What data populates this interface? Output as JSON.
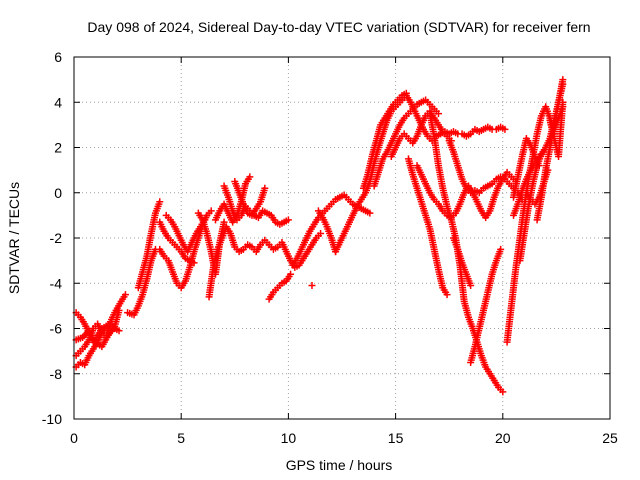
{
  "chart_data": {
    "type": "scatter",
    "title": "Day 098 of 2024, Sidereal Day-to-day VTEC variation (SDTVAR) for receiver fern",
    "xlabel": "GPS time / hours",
    "ylabel": "SDTVAR / TECUs",
    "xlim": [
      0,
      25
    ],
    "ylim": [
      -10,
      6
    ],
    "xticks": [
      "0",
      "5",
      "10",
      "15",
      "20",
      "25"
    ],
    "yticks": [
      "-10",
      "-8",
      "-6",
      "-4",
      "-2",
      "0",
      "2",
      "4",
      "6"
    ],
    "grid": true,
    "marker": "+",
    "colors": {
      "series": "#ff0000"
    },
    "series": [
      {
        "x": [
          0.1,
          0.3,
          0.5,
          0.7,
          0.9,
          1.1,
          1.3,
          1.5,
          1.7,
          1.9,
          2.1
        ],
        "y": [
          -7.7,
          -7.5,
          -7.6,
          -7.2,
          -6.9,
          -6.6,
          -6.2,
          -5.9,
          -5.8,
          -6.0,
          -6.1
        ]
      },
      {
        "x": [
          0.1,
          0.3,
          0.5,
          0.7,
          0.9,
          1.1,
          1.3,
          1.5,
          1.7,
          1.9,
          2.2,
          2.4
        ],
        "y": [
          -7.2,
          -7.0,
          -6.8,
          -6.5,
          -6.0,
          -5.8,
          -6.2,
          -6.4,
          -5.7,
          -5.3,
          -4.8,
          -4.5
        ]
      },
      {
        "x": [
          0.1,
          0.3,
          0.5,
          0.7,
          0.9,
          1.1,
          1.3,
          1.5
        ],
        "y": [
          -5.3,
          -5.5,
          -5.8,
          -6.2,
          -6.6,
          -6.3,
          -6.0,
          -5.9
        ]
      },
      {
        "x": [
          0.1,
          0.4,
          0.7,
          1.0,
          1.3,
          1.6,
          1.9,
          2.1
        ],
        "y": [
          -6.5,
          -6.4,
          -6.1,
          -6.6,
          -6.8,
          -6.3,
          -5.9,
          -5.2
        ]
      },
      {
        "x": [
          2.5,
          2.8,
          3.0,
          3.2,
          3.4,
          3.6,
          3.8,
          4.0,
          4.2,
          4.4,
          4.6,
          4.8,
          5.0,
          5.2,
          5.4,
          5.6,
          5.8,
          6.0,
          6.2,
          6.4
        ],
        "y": [
          -5.3,
          -5.4,
          -5.0,
          -4.5,
          -3.8,
          -3.0,
          -2.5,
          -2.5,
          -2.8,
          -3.0,
          -3.5,
          -4.0,
          -4.2,
          -3.9,
          -3.3,
          -2.6,
          -2.0,
          -1.4,
          -1.0,
          -0.8
        ]
      },
      {
        "x": [
          3.0,
          3.2,
          3.4,
          3.6,
          3.8,
          4.0
        ],
        "y": [
          -4.2,
          -3.5,
          -2.8,
          -1.8,
          -0.9,
          -0.4
        ]
      },
      {
        "x": [
          4.0,
          4.2,
          4.4,
          4.6,
          4.8,
          5.0,
          5.2,
          5.4,
          5.6
        ],
        "y": [
          -1.3,
          -1.7,
          -2.0,
          -2.2,
          -2.4,
          -2.6,
          -2.9,
          -3.0,
          -3.1
        ]
      },
      {
        "x": [
          4.3,
          4.5,
          4.7,
          4.9,
          5.1,
          5.3,
          5.5,
          5.7,
          5.9,
          6.1
        ],
        "y": [
          -1.0,
          -1.2,
          -1.5,
          -1.9,
          -2.3,
          -2.6,
          -2.2,
          -1.8,
          -1.5,
          -1.2
        ]
      },
      {
        "x": [
          5.8,
          6.0,
          6.2,
          6.4,
          6.6,
          6.8,
          7.0
        ],
        "y": [
          -0.9,
          -1.2,
          -1.8,
          -2.6,
          -3.6,
          -2.2,
          -1.3
        ]
      },
      {
        "x": [
          6.3,
          6.5,
          6.7,
          6.9,
          7.1,
          7.3,
          7.5,
          7.7,
          7.9,
          8.1,
          8.3,
          8.5,
          8.7,
          8.9,
          9.1,
          9.3,
          9.5,
          9.7,
          9.9,
          10.1,
          10.3,
          10.5,
          10.7,
          10.9,
          11.1,
          11.3,
          11.5
        ],
        "y": [
          -4.6,
          -3.3,
          -2.5,
          -2.0,
          -1.5,
          -1.8,
          -2.4,
          -2.6,
          -2.5,
          -2.3,
          -2.4,
          -2.6,
          -2.3,
          -2.1,
          -2.3,
          -2.5,
          -2.4,
          -2.2,
          -2.6,
          -3.0,
          -3.3,
          -3.2,
          -2.9,
          -2.6,
          -2.3,
          -2.0,
          -1.8
        ]
      },
      {
        "x": [
          6.6,
          6.8,
          7.0,
          7.2,
          7.4,
          7.6,
          7.8,
          8.0,
          8.2
        ],
        "y": [
          -1.2,
          -0.8,
          -0.5,
          -0.9,
          -1.3,
          -1.0,
          -0.4,
          0.4,
          0.7
        ]
      },
      {
        "x": [
          7.0,
          7.2,
          7.4,
          7.6,
          7.8,
          8.0,
          8.2,
          8.4,
          8.6,
          8.8,
          9.0,
          9.2,
          9.4,
          9.6,
          9.8,
          10.0
        ],
        "y": [
          0.3,
          -0.2,
          -0.8,
          -1.2,
          -1.0,
          -0.6,
          -0.8,
          -1.0,
          -1.1,
          -0.8,
          -0.9,
          -1.0,
          -1.3,
          -1.4,
          -1.3,
          -1.2
        ]
      },
      {
        "x": [
          7.5,
          7.7,
          7.9,
          8.1,
          8.3,
          8.5,
          8.7,
          8.9
        ],
        "y": [
          0.5,
          0.0,
          -0.5,
          -0.9,
          -1.0,
          -0.7,
          -0.4,
          0.2
        ]
      },
      {
        "x": [
          9.1,
          9.3,
          9.5,
          9.7,
          9.9,
          10.1
        ],
        "y": [
          -4.7,
          -4.4,
          -4.2,
          -4.0,
          -3.9,
          -3.6
        ]
      },
      {
        "x": [
          10.2,
          10.4,
          10.6,
          10.8,
          11.0,
          11.2,
          11.4,
          11.6,
          11.8,
          12.0,
          12.2,
          12.4,
          12.6,
          12.8,
          13.0,
          13.2,
          13.4,
          13.6,
          13.8
        ],
        "y": [
          -3.2,
          -2.9,
          -2.5,
          -2.1,
          -1.7,
          -1.4,
          -1.1,
          -0.9,
          -0.7,
          -0.5,
          -0.3,
          -0.2,
          -0.1,
          -0.3,
          -0.5,
          -0.6,
          -0.7,
          -0.8,
          -0.9
        ]
      },
      {
        "x": [
          11.4,
          11.6,
          11.8,
          12.0,
          12.2
        ],
        "y": [
          -0.8,
          -1.1,
          -1.5,
          -2.0,
          -2.6
        ]
      },
      {
        "x": [
          11.1
        ],
        "y": [
          -4.1
        ]
      },
      {
        "x": [
          12.2,
          12.4,
          12.6,
          12.8,
          13.0,
          13.2,
          13.4,
          13.6,
          13.8,
          14.0,
          14.2,
          14.4,
          14.6,
          14.8,
          15.0,
          15.2,
          15.4
        ],
        "y": [
          -2.6,
          -2.2,
          -1.8,
          -1.4,
          -1.0,
          -0.6,
          -0.3,
          0.0,
          0.5,
          1.3,
          2.0,
          2.6,
          3.2,
          3.6,
          3.8,
          4.0,
          4.2
        ]
      },
      {
        "x": [
          13.5,
          13.7,
          13.9,
          14.1,
          14.3,
          14.5,
          14.7,
          14.9,
          15.1,
          15.3,
          15.5
        ],
        "y": [
          0.2,
          0.8,
          1.6,
          2.3,
          3.0,
          3.3,
          3.6,
          3.9,
          4.1,
          4.3,
          4.4
        ]
      },
      {
        "x": [
          14.0,
          14.2,
          14.4,
          14.6,
          14.8,
          15.0,
          15.2,
          15.4,
          15.6,
          15.8,
          16.0,
          16.2,
          16.4,
          16.6,
          16.8,
          17.0
        ],
        "y": [
          0.3,
          0.9,
          1.5,
          1.8,
          2.2,
          2.6,
          3.0,
          3.3,
          3.5,
          3.7,
          3.9,
          4.0,
          4.1,
          3.9,
          3.7,
          3.5
        ]
      },
      {
        "x": [
          14.8,
          15.0,
          15.2,
          15.4,
          15.6,
          15.8,
          16.0,
          16.2,
          16.4,
          16.6,
          16.8,
          17.0,
          17.2,
          17.4,
          17.6
        ],
        "y": [
          1.6,
          2.0,
          2.4,
          2.6,
          2.4,
          2.2,
          2.5,
          3.0,
          3.4,
          3.6,
          3.3,
          3.0,
          2.7,
          2.5,
          2.3
        ]
      },
      {
        "x": [
          15.5,
          15.7,
          15.9,
          16.1,
          16.3,
          16.5,
          16.7,
          16.9,
          17.1,
          17.3,
          17.5,
          17.7,
          17.9,
          18.1,
          18.3,
          18.5,
          18.7,
          18.9,
          19.1,
          19.3,
          19.5,
          19.7,
          19.9,
          20.1
        ],
        "y": [
          4.3,
          4.0,
          3.6,
          3.2,
          2.8,
          2.5,
          2.3,
          2.5,
          2.6,
          2.7,
          2.6,
          2.7,
          2.6,
          2.6,
          2.5,
          2.6,
          2.8,
          2.7,
          2.8,
          2.9,
          2.8,
          2.8,
          2.9,
          2.8
        ]
      },
      {
        "x": [
          16.0,
          16.2,
          16.4,
          16.6,
          16.8,
          17.0,
          17.2,
          17.4,
          17.6,
          17.8,
          18.0,
          18.2,
          18.4,
          18.6,
          18.8,
          19.0,
          19.2,
          19.4,
          19.6,
          19.8,
          20.0,
          20.2,
          20.4,
          20.6
        ],
        "y": [
          1.2,
          0.8,
          0.4,
          0.0,
          -0.3,
          -0.5,
          -0.8,
          -1.0,
          -1.1,
          -0.9,
          -0.5,
          0.0,
          0.3,
          0.0,
          -0.4,
          -0.8,
          -1.1,
          -0.8,
          -0.2,
          0.3,
          0.6,
          0.9,
          0.7,
          0.5
        ]
      },
      {
        "x": [
          17.5,
          17.7,
          17.9,
          18.1,
          18.3,
          18.5,
          18.7,
          18.9,
          19.1,
          19.3,
          19.5,
          19.7,
          19.9,
          20.1,
          20.3,
          20.5,
          20.7,
          20.9
        ],
        "y": [
          2.3,
          1.8,
          1.2,
          0.6,
          0.2,
          0.0,
          0.1,
          0.0,
          0.2,
          0.3,
          0.4,
          0.6,
          0.7,
          0.6,
          0.4,
          0.2,
          0.0,
          -0.3
        ]
      },
      {
        "x": [
          16.6,
          16.8,
          17.0,
          17.2,
          17.4,
          17.6,
          17.8,
          18.0,
          18.2,
          18.4,
          18.6,
          18.8,
          19.0,
          19.2,
          19.4,
          19.6,
          19.8,
          20.0
        ],
        "y": [
          3.5,
          2.5,
          1.2,
          0.2,
          -0.6,
          -1.2,
          -2.0,
          -3.2,
          -4.8,
          -5.5,
          -6.0,
          -6.6,
          -7.2,
          -7.7,
          -8.0,
          -8.3,
          -8.6,
          -8.8
        ]
      },
      {
        "x": [
          15.6,
          15.8,
          16.0,
          16.2,
          16.4,
          16.6,
          16.8,
          17.0,
          17.2,
          17.4
        ],
        "y": [
          1.5,
          0.8,
          0.2,
          -0.4,
          -1.0,
          -1.6,
          -2.5,
          -3.4,
          -4.2,
          -4.5
        ]
      },
      {
        "x": [
          17.7,
          17.9,
          18.1,
          18.3,
          18.5
        ],
        "y": [
          -2.0,
          -2.5,
          -3.1,
          -3.6,
          -4.1
        ]
      },
      {
        "x": [
          18.5,
          18.7,
          18.9,
          19.1,
          19.3,
          19.5,
          19.7,
          19.9
        ],
        "y": [
          -7.5,
          -6.8,
          -6.0,
          -5.2,
          -4.4,
          -3.6,
          -3.0,
          -2.5
        ]
      },
      {
        "x": [
          20.2,
          20.4,
          20.6,
          20.8,
          21.0,
          21.2,
          21.4,
          21.6,
          21.8,
          22.0,
          22.2,
          22.4
        ],
        "y": [
          -6.6,
          -5.0,
          -3.4,
          -2.0,
          -0.6,
          0.6,
          1.6,
          2.6,
          3.4,
          3.8,
          3.3,
          2.6
        ]
      },
      {
        "x": [
          20.8,
          21.0,
          21.2,
          21.4,
          21.6,
          21.8,
          22.0,
          22.2,
          22.4,
          22.6,
          22.8
        ],
        "y": [
          -3.0,
          -1.8,
          -0.6,
          0.4,
          1.2,
          1.7,
          2.0,
          2.4,
          2.8,
          3.3,
          3.8
        ]
      },
      {
        "x": [
          21.6,
          21.8,
          22.0,
          22.2,
          22.4,
          22.6,
          22.8
        ],
        "y": [
          -1.2,
          -0.2,
          1.0,
          2.0,
          3.0,
          4.0,
          5.0
        ]
      },
      {
        "x": [
          21.1,
          21.3,
          21.5,
          21.7,
          21.9,
          22.1
        ],
        "y": [
          0.0,
          -0.3,
          -0.5,
          -0.2,
          0.4,
          1.0
        ]
      },
      {
        "x": [
          22.2,
          22.4,
          22.6,
          22.8
        ],
        "y": [
          2.4,
          3.2,
          4.0,
          4.8
        ]
      },
      {
        "x": [
          20.5,
          20.7,
          20.9,
          21.1,
          21.3,
          21.5,
          21.7
        ],
        "y": [
          -0.2,
          0.7,
          1.6,
          2.4,
          2.1,
          1.6,
          1.2
        ]
      },
      {
        "x": [
          22.2,
          22.4,
          22.6,
          22.8
        ],
        "y": [
          3.2,
          2.4,
          1.6,
          4.0
        ]
      },
      {
        "x": [
          20.5,
          20.7,
          20.9,
          21.1,
          21.3,
          21.5,
          21.7,
          21.9
        ],
        "y": [
          -1.0,
          -0.5,
          0.1,
          0.6,
          1.0,
          1.3,
          1.6,
          1.8
        ]
      }
    ]
  }
}
